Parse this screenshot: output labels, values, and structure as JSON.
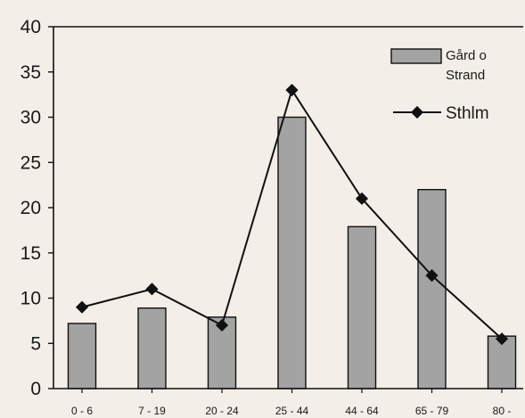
{
  "chart_data": {
    "type": "bar",
    "categories": [
      "0 - 6",
      "7 - 19",
      "20 - 24",
      "25 - 44",
      "44 - 64",
      "65 - 79",
      "80 -"
    ],
    "series": [
      {
        "name": "Gård o Strand",
        "type": "bar",
        "values": [
          7.2,
          8.9,
          7.9,
          30.0,
          17.9,
          22.0,
          5.8
        ],
        "color": "#a3a3a3"
      },
      {
        "name": "Sthlm",
        "type": "line",
        "values": [
          9.0,
          11.0,
          7.0,
          33.0,
          21.0,
          12.5,
          5.5
        ],
        "color": "#111111"
      }
    ],
    "y_ticks": [
      "0",
      "5",
      "10",
      "15",
      "20",
      "25",
      "30",
      "35",
      "40"
    ],
    "ylim": [
      0,
      40
    ],
    "grid": false,
    "legend_position": "top-right",
    "legend": {
      "bar_label_line1": "Gård o",
      "bar_label_line2": "Strand",
      "line_label": "Sthlm"
    }
  }
}
